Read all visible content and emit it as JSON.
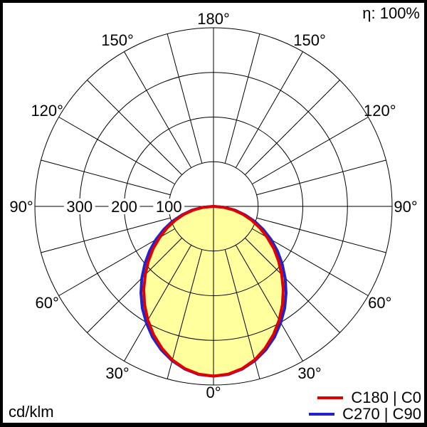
{
  "chart_data": {
    "type": "polar",
    "subtype": "luminous-intensity-distribution",
    "unit_label": "cd/klm",
    "efficiency_label": "η: 100%",
    "angle_labels": [
      "0°",
      "30°",
      "60°",
      "90°",
      "120°",
      "150°",
      "180°"
    ],
    "angle_grid_step_deg": 15,
    "radial_ticks": [
      100,
      200,
      300
    ],
    "radial_max": 400,
    "grid_on": true,
    "grid_color": "#000000",
    "fill_color": "#ffff9e",
    "background_color": "#ffffff",
    "frame_color": "#000000",
    "legend_position": "bottom-right",
    "gamma_deg": [
      0,
      5,
      10,
      15,
      20,
      25,
      30,
      35,
      40,
      45,
      50,
      55,
      60,
      65,
      70,
      75,
      80,
      85,
      90
    ],
    "series": [
      {
        "name": "C180 | C0",
        "color": "#e00000",
        "values": [
          380,
          377,
          369,
          356,
          338,
          317,
          294,
          269,
          243,
          216,
          190,
          165,
          139,
          115,
          91,
          68,
          45,
          22,
          0
        ]
      },
      {
        "name": "C270 | C90",
        "color": "#2222cc",
        "values": [
          380,
          378,
          370,
          358,
          342,
          323,
          301,
          278,
          253,
          227,
          201,
          175,
          149,
          123,
          98,
          73,
          49,
          24,
          0
        ]
      }
    ]
  }
}
